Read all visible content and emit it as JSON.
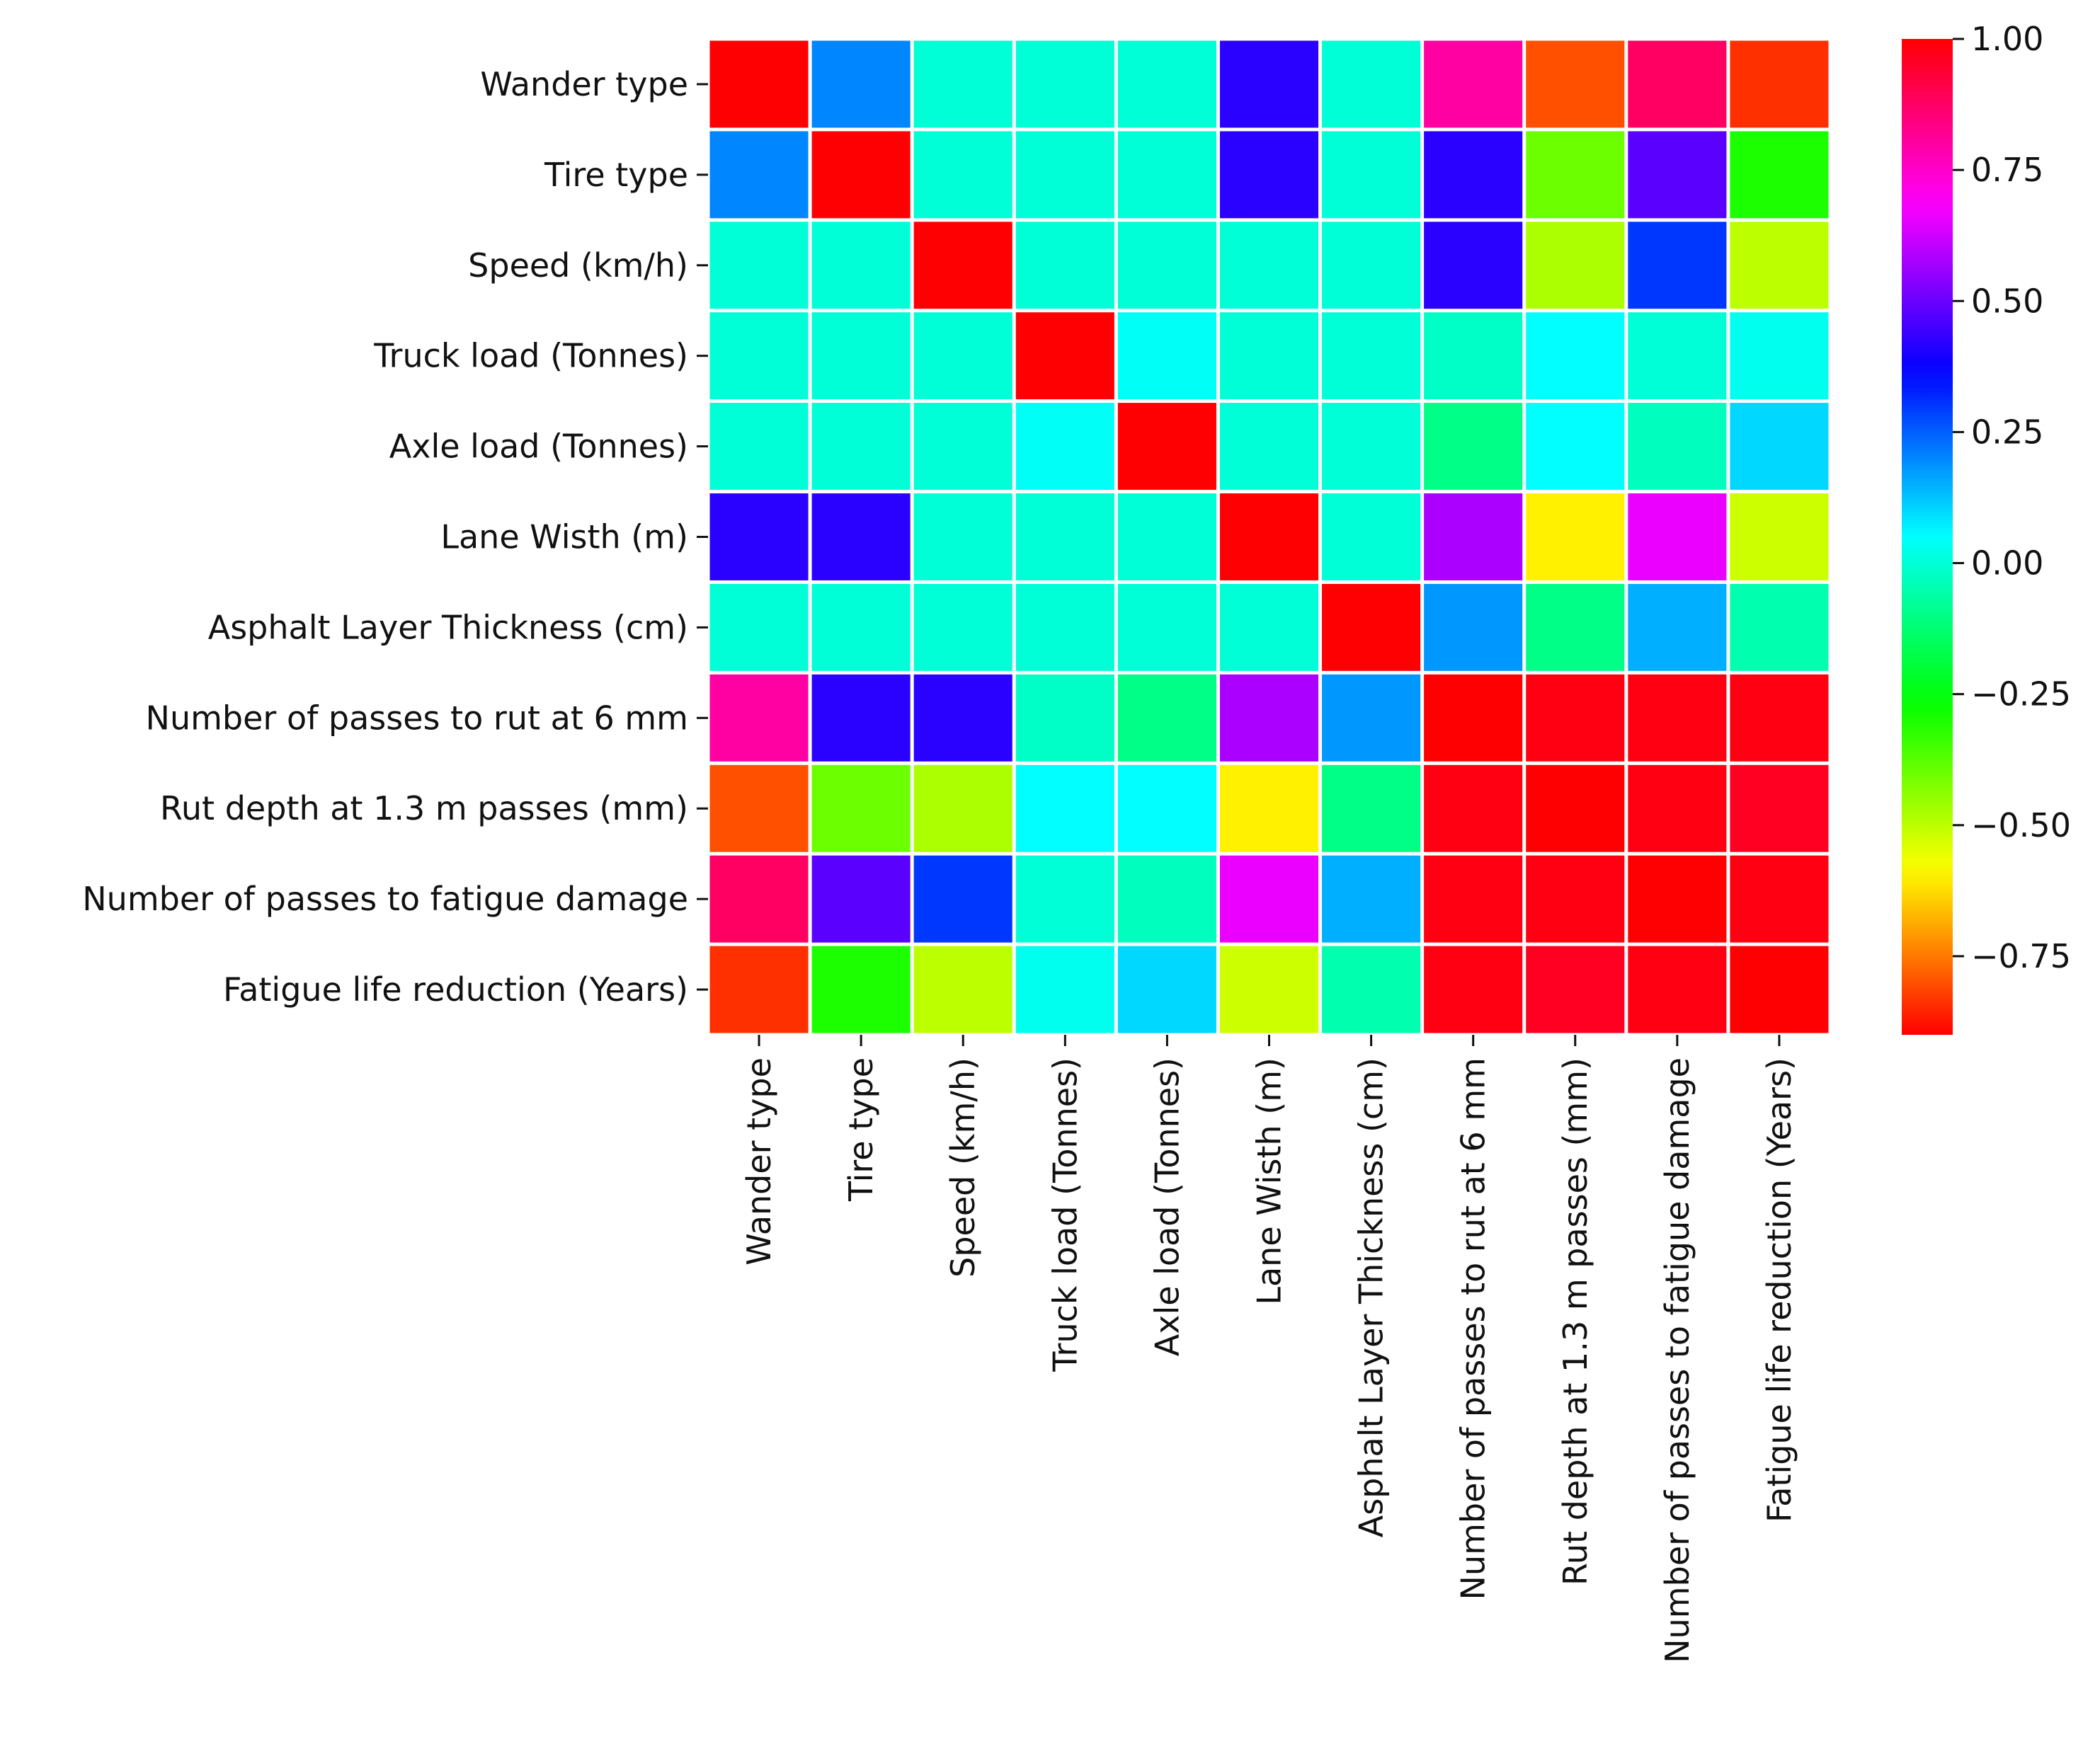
{
  "chart_data": {
    "type": "heatmap",
    "rows": [
      "Wander type",
      "Tire type",
      "Speed (km/h)",
      "Truck load (Tonnes)",
      "Axle load (Tonnes)",
      "Lane Wisth (m)",
      "Asphalt Layer Thickness (cm)",
      "Number of passes to rut at 6 mm",
      "Rut depth at 1.3 m passes (mm)",
      "Number of passes to fatigue damage",
      "Fatigue life reduction (Years)"
    ],
    "columns": [
      "Wander type",
      "Tire type",
      "Speed (km/h)",
      "Truck load (Tonnes)",
      "Axle load (Tonnes)",
      "Lane Wisth (m)",
      "Asphalt Layer Thickness (cm)",
      "Number of passes to rut at 6 mm",
      "Rut depth at 1.3 m passes (mm)",
      "Number of passes to fatigue damage",
      "Fatigue life reduction (Years)"
    ],
    "values": [
      [
        1.0,
        0.2,
        0.0,
        0.0,
        0.0,
        0.42,
        0.0,
        0.8,
        -0.8,
        0.88,
        -0.84
      ],
      [
        0.2,
        1.0,
        0.0,
        0.0,
        0.0,
        0.42,
        0.0,
        0.42,
        -0.4,
        0.48,
        -0.3
      ],
      [
        0.0,
        0.0,
        1.0,
        0.0,
        0.0,
        0.0,
        0.0,
        0.42,
        -0.48,
        0.3,
        -0.5
      ],
      [
        0.0,
        0.0,
        0.0,
        1.0,
        0.04,
        0.0,
        0.0,
        -0.02,
        0.05,
        0.0,
        0.03
      ],
      [
        0.0,
        0.0,
        0.0,
        0.04,
        1.0,
        0.0,
        0.0,
        -0.1,
        0.05,
        -0.03,
        0.1
      ],
      [
        0.42,
        0.42,
        0.0,
        0.0,
        0.0,
        1.0,
        0.0,
        0.58,
        -0.6,
        0.66,
        -0.52
      ],
      [
        0.0,
        0.0,
        0.0,
        0.0,
        0.0,
        0.0,
        1.0,
        0.18,
        -0.1,
        0.15,
        -0.05
      ],
      [
        0.8,
        0.42,
        0.42,
        -0.02,
        -0.1,
        0.58,
        0.18,
        1.0,
        0.98,
        0.98,
        0.98
      ],
      [
        -0.8,
        -0.4,
        -0.48,
        0.05,
        0.05,
        -0.6,
        -0.1,
        0.98,
        1.0,
        0.98,
        0.96
      ],
      [
        0.88,
        0.48,
        0.3,
        0.0,
        -0.03,
        0.66,
        0.15,
        0.98,
        0.98,
        1.0,
        0.98
      ],
      [
        -0.84,
        -0.3,
        -0.5,
        0.03,
        0.1,
        -0.52,
        -0.05,
        0.98,
        0.96,
        0.98,
        1.0
      ]
    ],
    "colorbar": {
      "range": [
        -0.9,
        1.0
      ],
      "ticks": [
        1.0,
        0.75,
        0.5,
        0.25,
        0.0,
        -0.25,
        -0.5,
        -0.75
      ],
      "tick_labels": [
        "1.00",
        "0.75",
        "0.50",
        "0.25",
        "0.00",
        "−0.25",
        "−0.50",
        "−0.75"
      ],
      "colormap": "hsv",
      "placement": "right"
    },
    "grid": "white cell separators",
    "title": "",
    "xlabel": "",
    "ylabel": ""
  }
}
